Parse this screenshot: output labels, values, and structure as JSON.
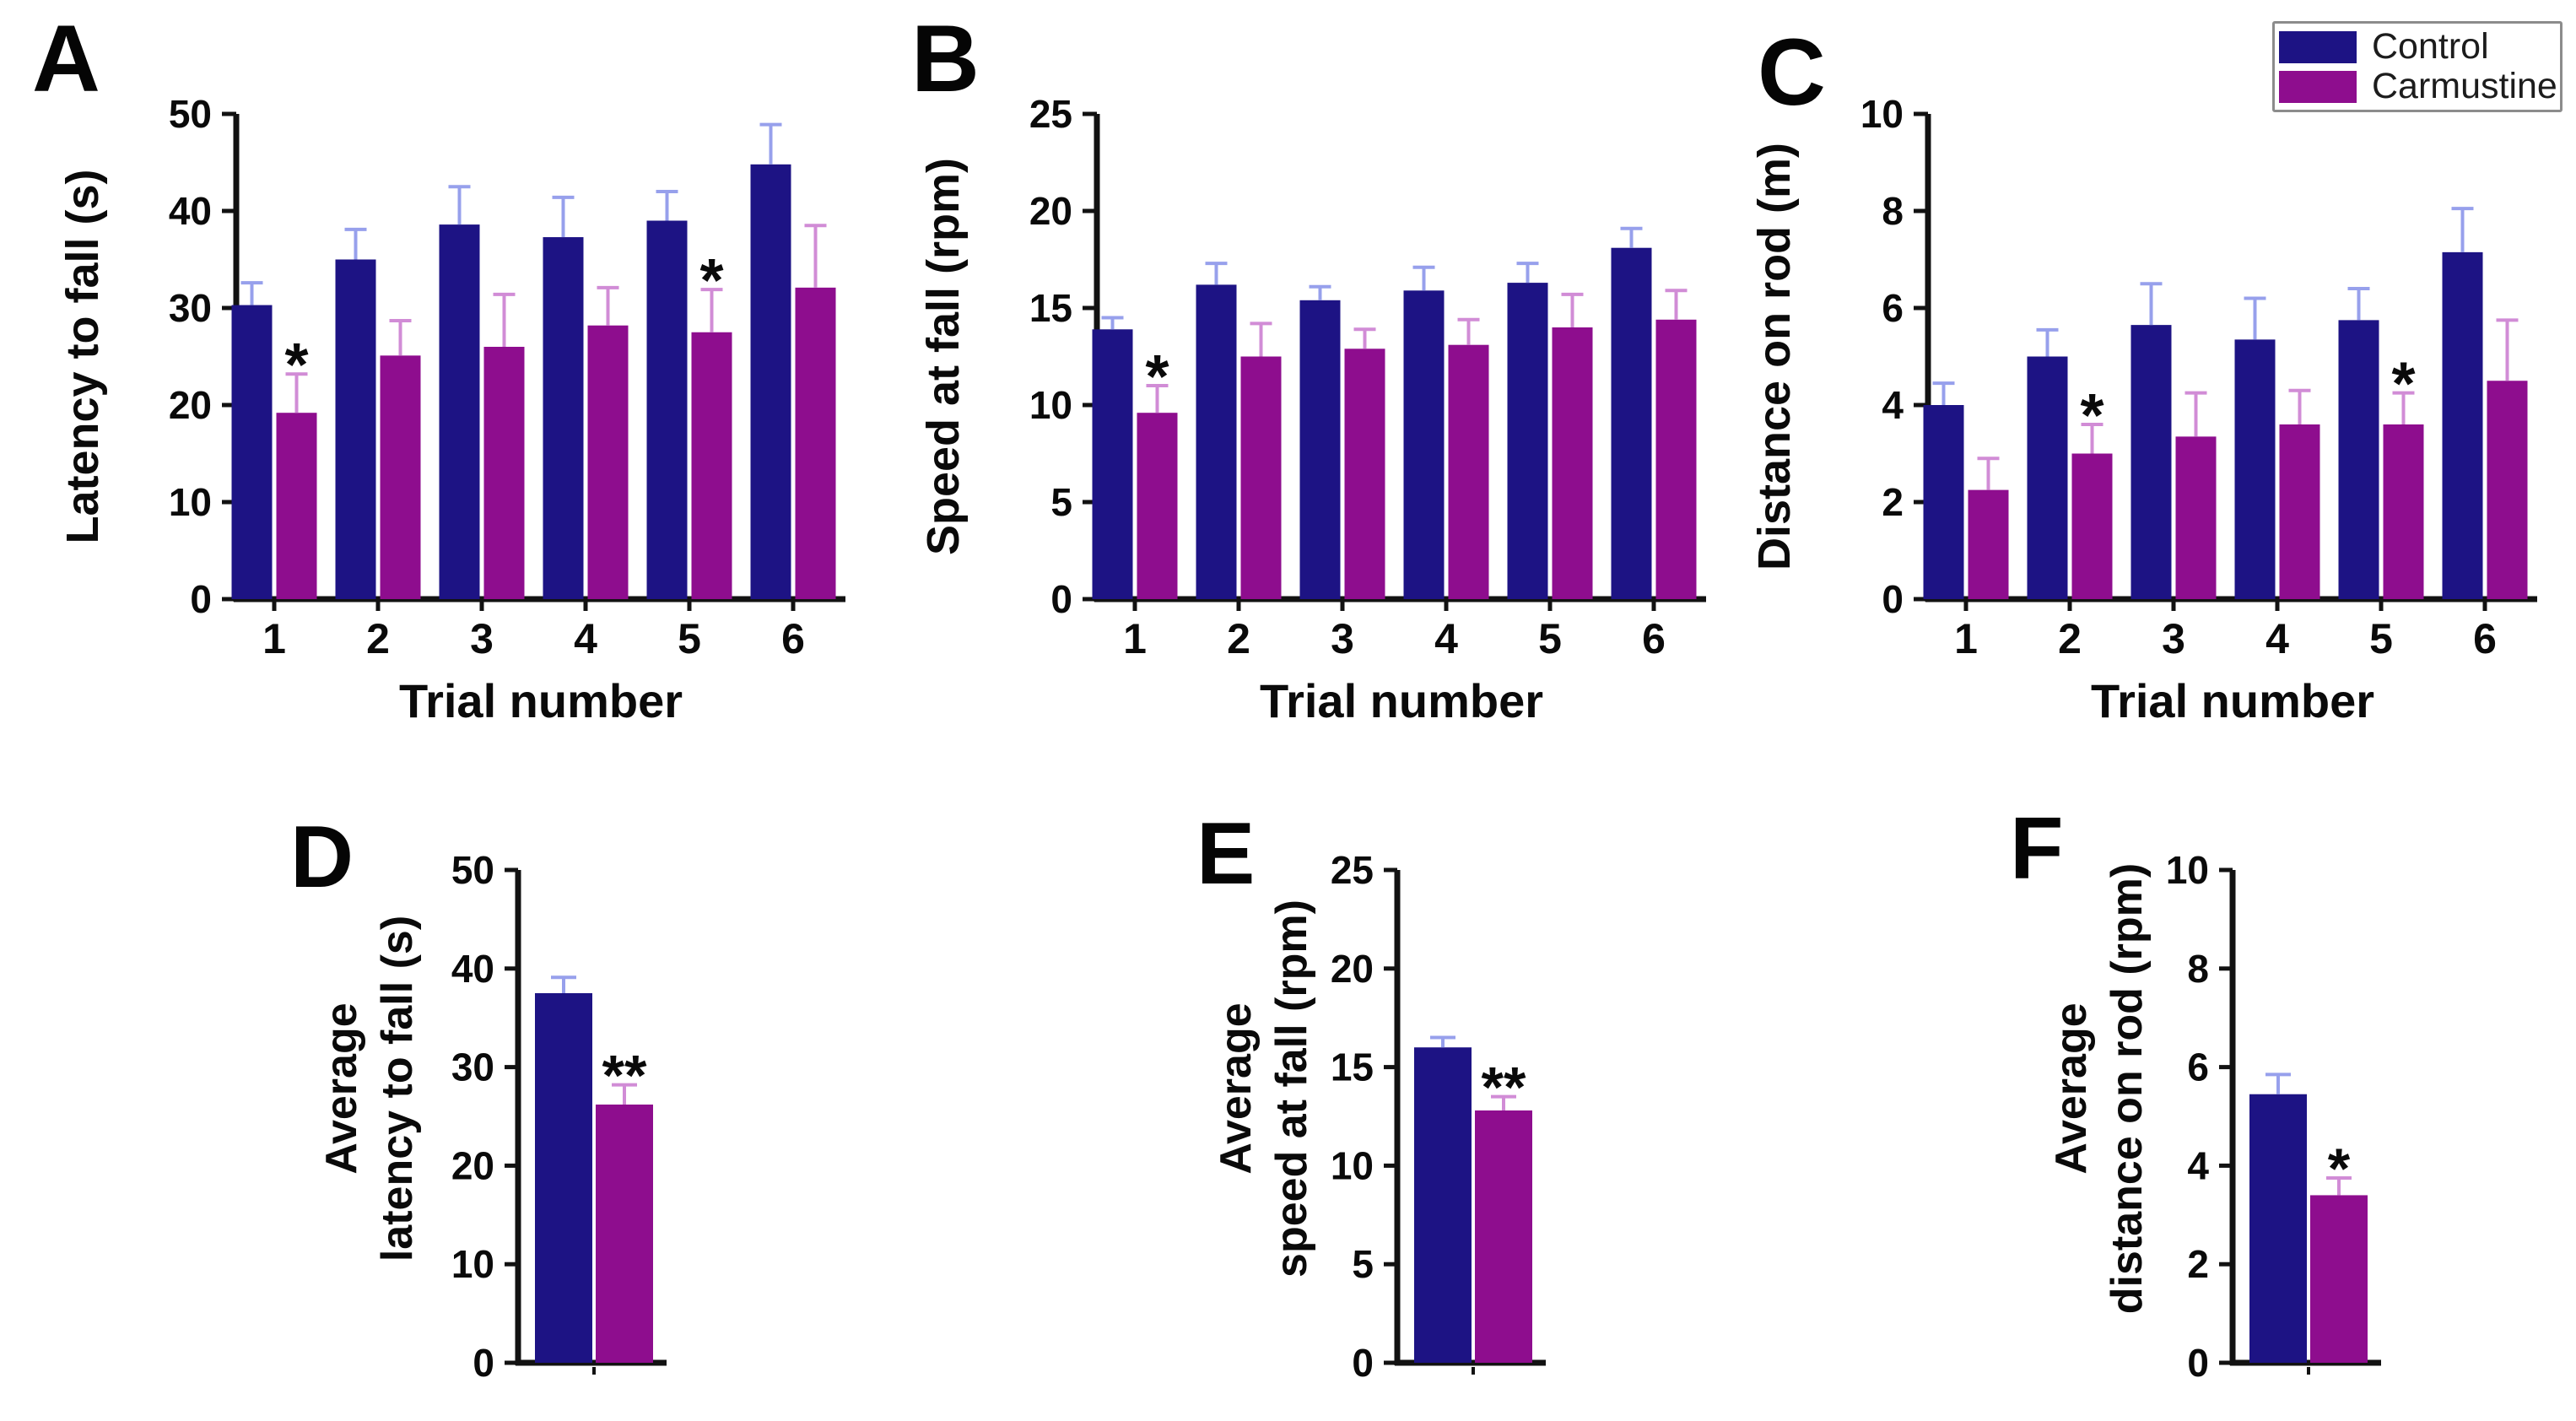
{
  "legend": {
    "items": [
      {
        "label": "Control",
        "color": "#1d1384",
        "error_color": "#97a0ec"
      },
      {
        "label": "Carmustine",
        "color": "#8e0d8e",
        "error_color": "#d18cd6"
      }
    ]
  },
  "chart_data": [
    {
      "id": "A",
      "letter": "A",
      "type": "bar",
      "panel_style": "trials",
      "ylabel": "Latency to fall (s)",
      "xlabel": "Trial number",
      "categories": [
        "1",
        "2",
        "3",
        "4",
        "5",
        "6"
      ],
      "ylim": [
        0,
        50
      ],
      "yticks": [
        0,
        10,
        20,
        30,
        40,
        50
      ],
      "series": [
        {
          "name": "Control",
          "values": [
            30.3,
            35.0,
            38.6,
            37.3,
            39.0,
            44.8
          ],
          "errors": [
            2.3,
            3.1,
            3.9,
            4.1,
            3.0,
            4.1
          ]
        },
        {
          "name": "Carmustine",
          "values": [
            19.2,
            25.1,
            26.0,
            28.2,
            27.5,
            32.1
          ],
          "errors": [
            4.0,
            3.6,
            5.4,
            3.9,
            4.4,
            6.4
          ]
        }
      ],
      "significance": [
        {
          "series": 1,
          "index": 0,
          "label": "*"
        },
        {
          "series": 1,
          "index": 4,
          "label": "*"
        }
      ]
    },
    {
      "id": "B",
      "letter": "B",
      "type": "bar",
      "panel_style": "trials",
      "ylabel": "Speed at fall (rpm)",
      "xlabel": "Trial number",
      "categories": [
        "1",
        "2",
        "3",
        "4",
        "5",
        "6"
      ],
      "ylim": [
        0,
        25
      ],
      "yticks": [
        0,
        5,
        10,
        15,
        20,
        25
      ],
      "series": [
        {
          "name": "Control",
          "values": [
            13.9,
            16.2,
            15.4,
            15.9,
            16.3,
            18.1
          ],
          "errors": [
            0.6,
            1.1,
            0.7,
            1.2,
            1.0,
            1.0
          ]
        },
        {
          "name": "Carmustine",
          "values": [
            9.6,
            12.5,
            12.9,
            13.1,
            14.0,
            14.4
          ],
          "errors": [
            1.4,
            1.7,
            1.0,
            1.3,
            1.7,
            1.5
          ]
        }
      ],
      "significance": [
        {
          "series": 1,
          "index": 0,
          "label": "*"
        }
      ]
    },
    {
      "id": "C",
      "letter": "C",
      "type": "bar",
      "panel_style": "trials",
      "ylabel": "Distance on rod (m)",
      "xlabel": "Trial number",
      "categories": [
        "1",
        "2",
        "3",
        "4",
        "5",
        "6"
      ],
      "ylim": [
        0,
        10
      ],
      "yticks": [
        0,
        2,
        4,
        6,
        8,
        10
      ],
      "series": [
        {
          "name": "Control",
          "values": [
            4.0,
            5.0,
            5.65,
            5.35,
            5.75,
            7.15
          ],
          "errors": [
            0.45,
            0.55,
            0.85,
            0.85,
            0.65,
            0.9
          ]
        },
        {
          "name": "Carmustine",
          "values": [
            2.25,
            3.0,
            3.35,
            3.6,
            3.6,
            4.5
          ],
          "errors": [
            0.65,
            0.6,
            0.9,
            0.7,
            0.65,
            1.25
          ]
        }
      ],
      "significance": [
        {
          "series": 1,
          "index": 1,
          "label": "*"
        },
        {
          "series": 1,
          "index": 4,
          "label": "*"
        }
      ]
    },
    {
      "id": "D",
      "letter": "D",
      "type": "bar",
      "panel_style": "average",
      "ylabel": [
        "Average",
        "latency to fall (s)"
      ],
      "xlabel": "",
      "categories": [
        ""
      ],
      "ylim": [
        0,
        50
      ],
      "yticks": [
        0,
        10,
        20,
        30,
        40,
        50
      ],
      "series": [
        {
          "name": "Control",
          "values": [
            37.5
          ],
          "errors": [
            1.6
          ]
        },
        {
          "name": "Carmustine",
          "values": [
            26.2
          ],
          "errors": [
            2.0
          ]
        }
      ],
      "significance": [
        {
          "series": 1,
          "index": 0,
          "label": "**"
        }
      ]
    },
    {
      "id": "E",
      "letter": "E",
      "type": "bar",
      "panel_style": "average",
      "ylabel": [
        "Average",
        "speed at fall (rpm)"
      ],
      "xlabel": "",
      "categories": [
        ""
      ],
      "ylim": [
        0,
        25
      ],
      "yticks": [
        0,
        5,
        10,
        15,
        20,
        25
      ],
      "series": [
        {
          "name": "Control",
          "values": [
            16.0
          ],
          "errors": [
            0.5
          ]
        },
        {
          "name": "Carmustine",
          "values": [
            12.8
          ],
          "errors": [
            0.7
          ]
        }
      ],
      "significance": [
        {
          "series": 1,
          "index": 0,
          "label": "**"
        }
      ]
    },
    {
      "id": "F",
      "letter": "F",
      "type": "bar",
      "panel_style": "average",
      "ylabel": [
        "Average",
        "distance on rod (rpm)"
      ],
      "xlabel": "",
      "categories": [
        ""
      ],
      "ylim": [
        0,
        10
      ],
      "yticks": [
        0,
        2,
        4,
        6,
        8,
        10
      ],
      "series": [
        {
          "name": "Control",
          "values": [
            5.45
          ],
          "errors": [
            0.4
          ]
        },
        {
          "name": "Carmustine",
          "values": [
            3.4
          ],
          "errors": [
            0.35
          ]
        }
      ],
      "significance": [
        {
          "series": 1,
          "index": 0,
          "label": "*"
        }
      ]
    }
  ]
}
